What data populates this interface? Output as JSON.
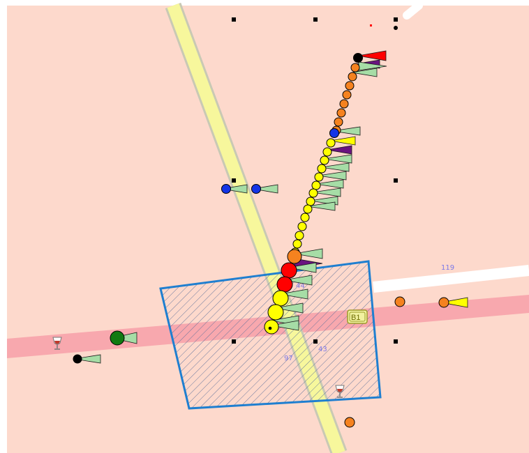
{
  "map": {
    "colors": {
      "land": "#fdd9cc",
      "road_major": "#f7f79c",
      "road_major_casing": "#c9c9b4",
      "road_secondary": "#f8a8ae",
      "road_minor": "#ffffff",
      "zone_stroke": "#1f7fd0",
      "zone_hatch": "#5c6f9a",
      "zone_badge_fill": "#f1f1a0",
      "zone_badge_stroke": "#9c9c2a",
      "label": "#7a78e8"
    },
    "road_labels": [
      "119",
      "44",
      "43",
      "97"
    ],
    "zone_label": "B1",
    "markers": {
      "track": {
        "circles": [
          "black",
          "orange",
          "orange",
          "orange",
          "orange",
          "orange",
          "orange",
          "orange",
          "orange",
          "blue",
          "yellow",
          "yellow",
          "yellow",
          "yellow",
          "yellow",
          "yellow",
          "yellow",
          "yellow",
          "yellow",
          "yellow",
          "yellow",
          "yellow",
          "yellow",
          "yellow",
          "orange",
          "red",
          "red",
          "yellow",
          "yellow",
          "yellow"
        ],
        "arrows": [
          "red",
          "purple",
          "green",
          "green",
          "green",
          "yellow",
          "purple",
          "green",
          "green",
          "green",
          "green",
          "green",
          "green",
          "green",
          "green",
          "purple",
          "green",
          "green",
          "green",
          "green",
          "green",
          "green"
        ]
      },
      "other": [
        "blue",
        "blue",
        "green",
        "black",
        "orange",
        "orange",
        "orange"
      ],
      "palette": {
        "black": "#000000",
        "orange": "#f5821f",
        "blue": "#1434e6",
        "yellow": "#ffff00",
        "red": "#ff0000",
        "green": "#127a12",
        "purple": "#6a1380",
        "arrow_green": "#a6dda6"
      }
    },
    "icons": [
      "wine-glass-icon",
      "wine-glass-icon"
    ]
  }
}
